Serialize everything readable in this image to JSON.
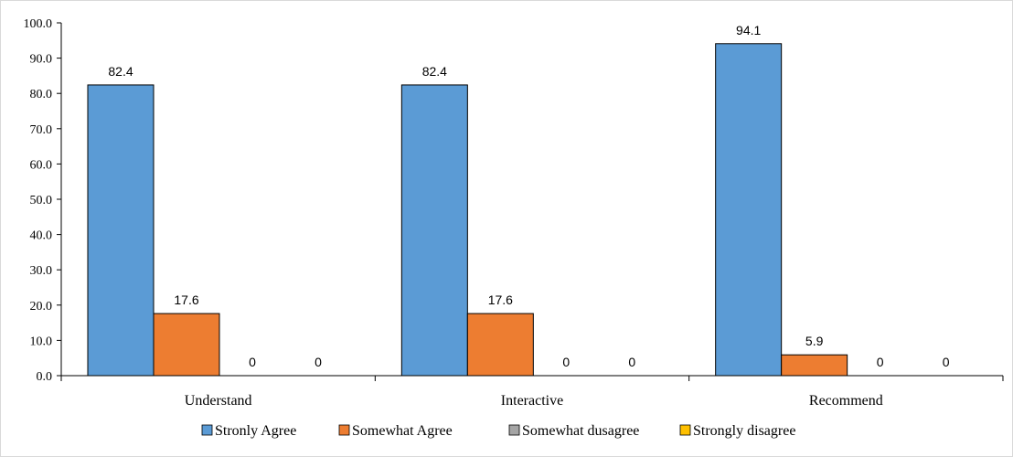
{
  "chart_data": {
    "type": "bar",
    "categories": [
      "Understand",
      "Interactive",
      "Recommend"
    ],
    "series": [
      {
        "name": "Stronly Agree",
        "values": [
          82.4,
          82.4,
          94.1
        ],
        "labels": [
          "82.4",
          "82.4",
          "94.1"
        ],
        "color": "#5b9bd5"
      },
      {
        "name": "Somewhat Agree",
        "values": [
          17.6,
          17.6,
          5.9
        ],
        "labels": [
          "17.6",
          "17.6",
          "5.9"
        ],
        "color": "#ed7d31"
      },
      {
        "name": "Somewhat dusagree",
        "values": [
          0,
          0,
          0
        ],
        "labels": [
          "0",
          "0",
          "0"
        ],
        "color": "#a5a5a5"
      },
      {
        "name": "Strongly disagree",
        "values": [
          0,
          0,
          0
        ],
        "labels": [
          "0",
          "0",
          "0"
        ],
        "color": "#ffc000"
      }
    ],
    "yticks": [
      "0.0",
      "10.0",
      "20.0",
      "30.0",
      "40.0",
      "50.0",
      "60.0",
      "70.0",
      "80.0",
      "90.0",
      "100.0"
    ],
    "ylim": [
      0,
      100
    ],
    "title": "",
    "xlabel": "",
    "ylabel": "",
    "grid": false,
    "legend_position": "bottom"
  }
}
